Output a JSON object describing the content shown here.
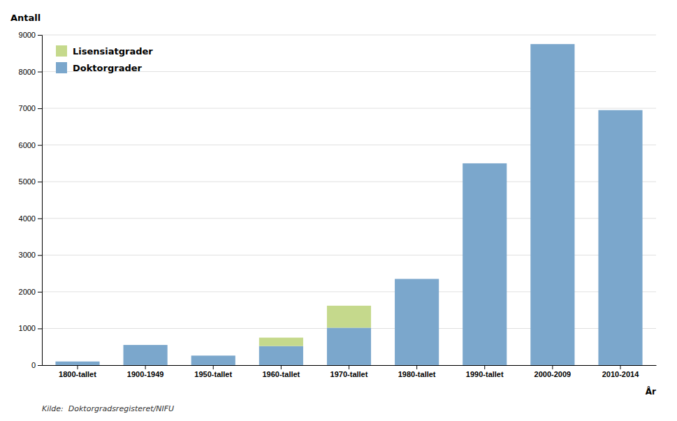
{
  "chart_data": {
    "type": "bar",
    "stacked": true,
    "categories": [
      "1800-tallet",
      "1900-1949",
      "1950-tallet",
      "1960-tallet",
      "1970-tallet",
      "1980-tallet",
      "1990-tallet",
      "2000-2009",
      "2010-2014"
    ],
    "series": [
      {
        "name": "Doktorgrader",
        "color": "#7BA7CC",
        "values": [
          100,
          550,
          260,
          520,
          1020,
          2350,
          5500,
          8750,
          6950
        ]
      },
      {
        "name": "Lisensiatgrader",
        "color": "#C5D98C",
        "values": [
          0,
          0,
          0,
          230,
          600,
          0,
          0,
          0,
          0
        ]
      }
    ],
    "y_label": "Antall",
    "x_label": "År",
    "annotations": [
      "Kilde:  Doktorgradsregisteret/NIFU"
    ],
    "ylim": [
      0,
      9000
    ],
    "yticks": [
      0,
      1000,
      2000,
      3000,
      4000,
      5000,
      6000,
      7000,
      8000,
      9000
    ],
    "grid": true,
    "legend": "upper left"
  }
}
